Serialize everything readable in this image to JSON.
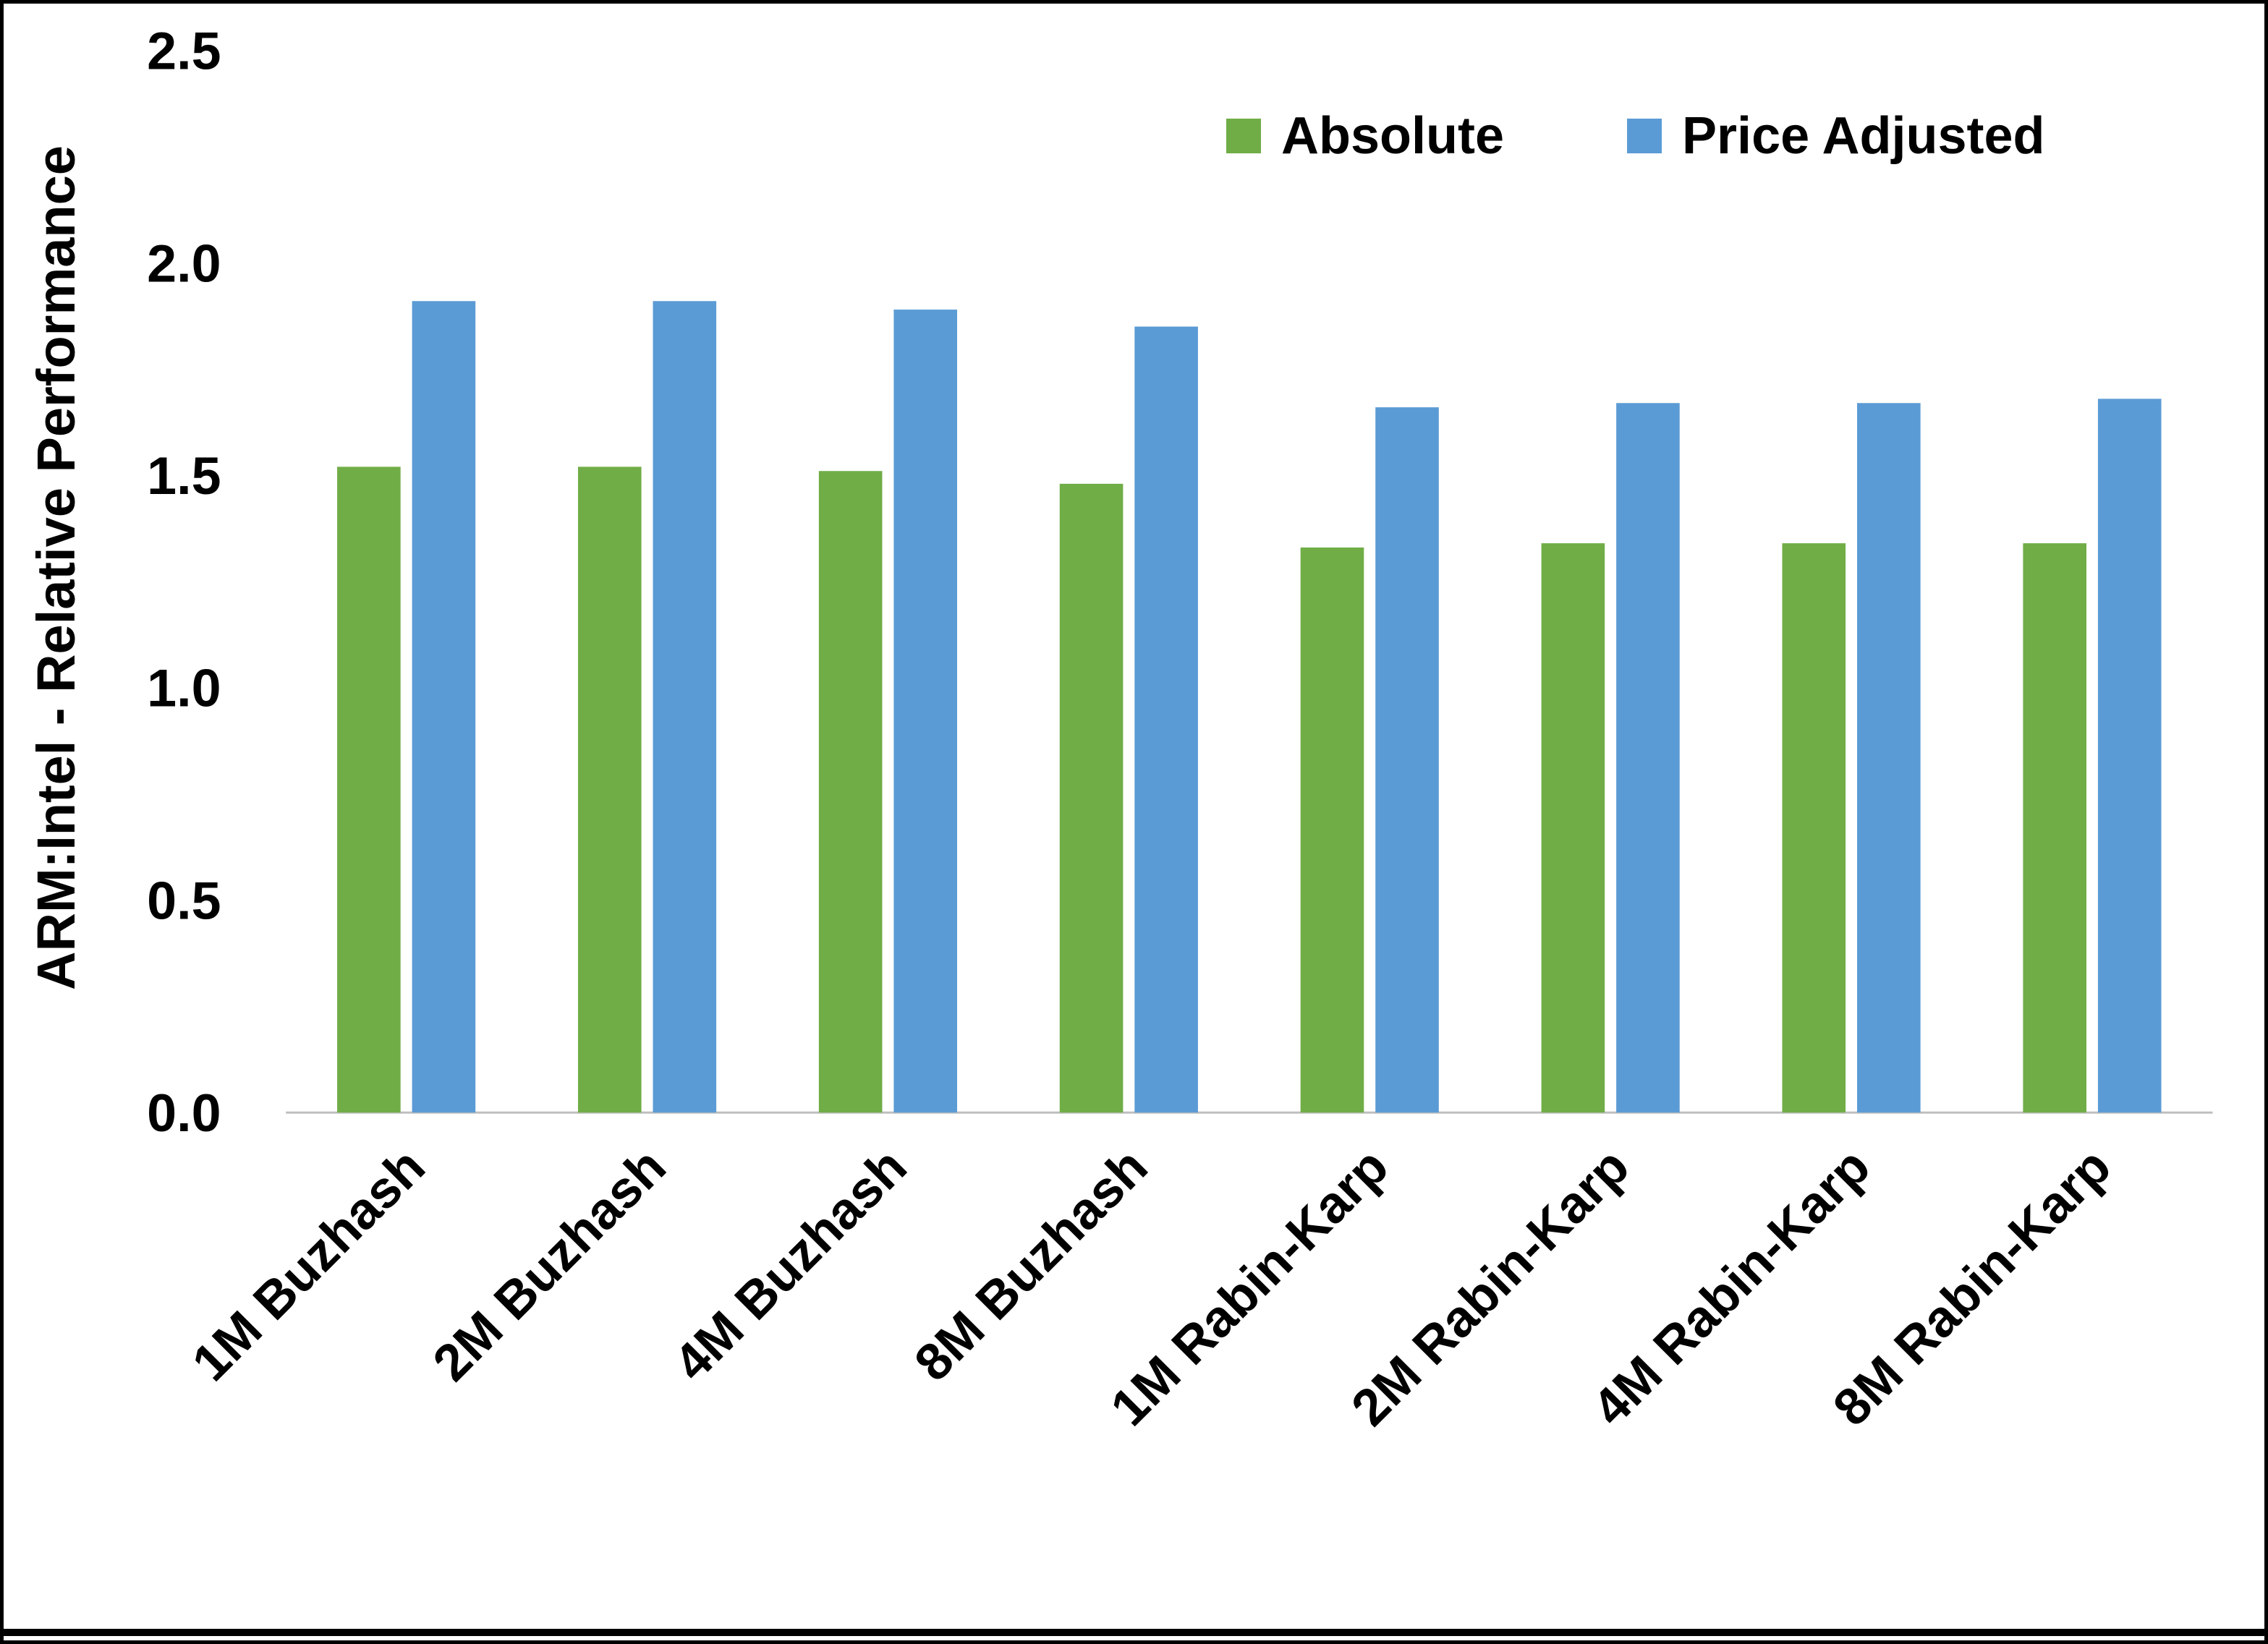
{
  "chart_data": {
    "type": "bar",
    "categories": [
      "1M Buzhash",
      "2M Buzhash",
      "4M Buzhash",
      "8M Buzhash",
      "1M Rabin-Karp",
      "2M Rabin-Karp",
      "4M Rabin-Karp",
      "8M Rabin-Karp"
    ],
    "series": [
      {
        "name": "Absolute",
        "color": "#70AD47",
        "values": [
          1.52,
          1.52,
          1.51,
          1.48,
          1.33,
          1.34,
          1.34,
          1.34
        ]
      },
      {
        "name": "Price Adjusted",
        "color": "#5B9BD5",
        "values": [
          1.91,
          1.91,
          1.89,
          1.85,
          1.66,
          1.67,
          1.67,
          1.68
        ]
      }
    ],
    "title": "",
    "xlabel": "",
    "ylabel": "ARM:Intel - Relative Performance",
    "ylim": [
      0,
      2.5
    ],
    "yticks": [
      0.0,
      0.5,
      1.0,
      1.5,
      2.0,
      2.5
    ],
    "ytick_labels": [
      "0.0",
      "0.5",
      "1.0",
      "1.5",
      "2.0",
      "2.5"
    ],
    "legend_position": "top-right",
    "grid": false,
    "baseline_color": "#BFBFBF"
  }
}
